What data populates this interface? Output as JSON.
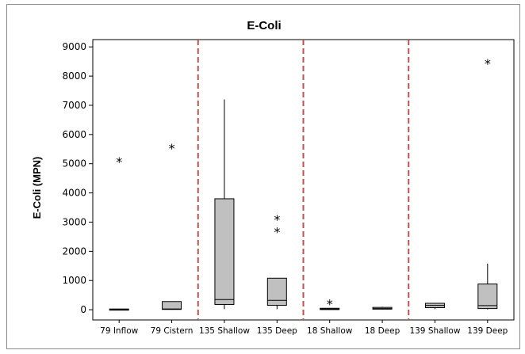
{
  "chart_data": {
    "type": "boxplot",
    "title": "E-Coli",
    "ylabel": "E-Coli (MPN)",
    "xlabel": "",
    "ylim": [
      -350,
      9250
    ],
    "yticks": [
      0,
      1000,
      2000,
      3000,
      4000,
      5000,
      6000,
      7000,
      8000,
      9000
    ],
    "grid": false,
    "categories": [
      "79 Inflow",
      "79 Cistern",
      "135 Shallow",
      "135 Deep",
      "18 Shallow",
      "18 Deep",
      "139 Shallow",
      "139 Deep"
    ],
    "boxes": [
      {
        "category": "79 Inflow",
        "q1": 0,
        "median": 10,
        "q3": 25,
        "whisker_low": 0,
        "whisker_high": 25,
        "outliers": [
          5100
        ]
      },
      {
        "category": "79 Cistern",
        "q1": 10,
        "median": 25,
        "q3": 280,
        "whisker_low": 0,
        "whisker_high": 280,
        "outliers": [
          5560
        ]
      },
      {
        "category": "135 Shallow",
        "q1": 180,
        "median": 350,
        "q3": 3800,
        "whisker_low": 20,
        "whisker_high": 7200,
        "outliers": []
      },
      {
        "category": "135 Deep",
        "q1": 150,
        "median": 320,
        "q3": 1080,
        "whisker_low": 20,
        "whisker_high": 1080,
        "outliers": [
          2700,
          3120
        ]
      },
      {
        "category": "18 Shallow",
        "q1": 5,
        "median": 25,
        "q3": 50,
        "whisker_low": 0,
        "whisker_high": 50,
        "outliers": [
          230
        ]
      },
      {
        "category": "18 Deep",
        "q1": 20,
        "median": 40,
        "q3": 80,
        "whisker_low": 10,
        "whisker_high": 100,
        "outliers": []
      },
      {
        "category": "139 Shallow",
        "q1": 70,
        "median": 150,
        "q3": 220,
        "whisker_low": 20,
        "whisker_high": 220,
        "outliers": []
      },
      {
        "category": "139 Deep",
        "q1": 40,
        "median": 140,
        "q3": 880,
        "whisker_low": 10,
        "whisker_high": 1580,
        "outliers": [
          8470
        ]
      }
    ],
    "group_separators_after": [
      2,
      4,
      6
    ],
    "colors": {
      "box_fill": "#c0c0c0",
      "box_stroke": "#000000",
      "separator": "#c0504d"
    },
    "outlier_marker": "asterisk"
  }
}
